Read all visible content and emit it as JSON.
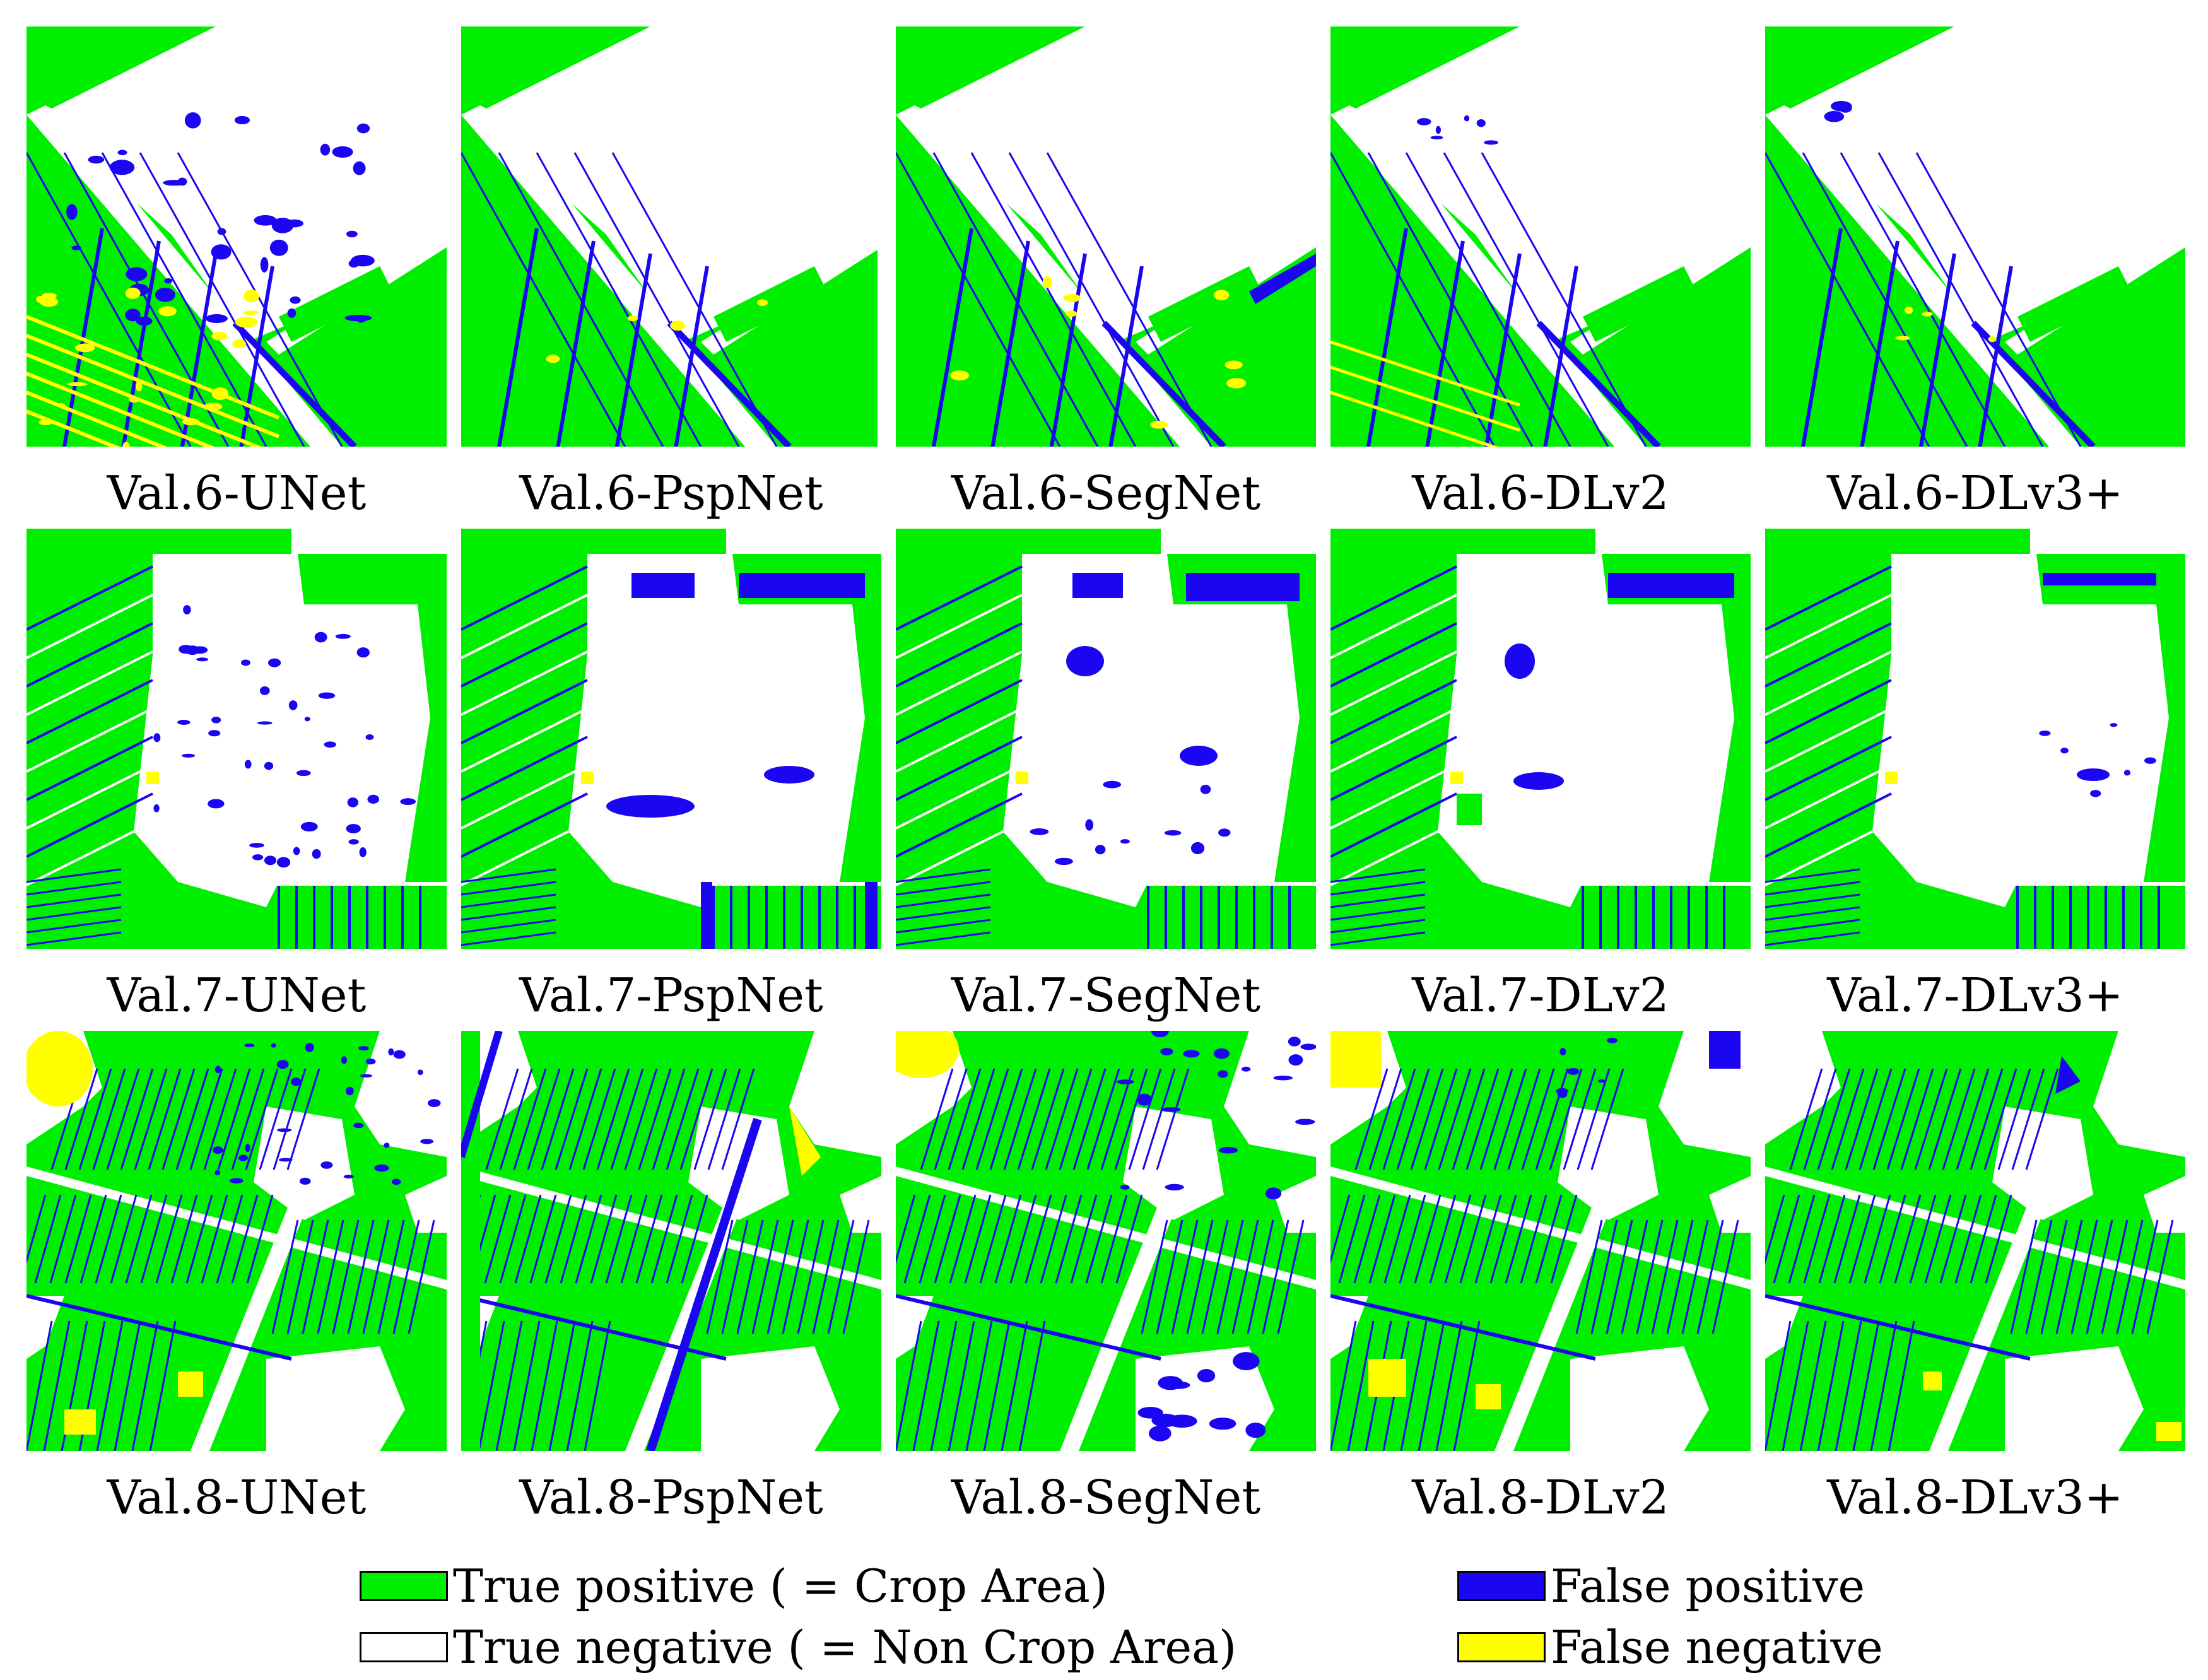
{
  "colors": {
    "true_positive": "#00ee00",
    "true_negative": "#ffffff",
    "false_positive": "#1a06f0",
    "false_negative": "#ffff00"
  },
  "panels": [
    {
      "caption": "Val.6-UNet"
    },
    {
      "caption": "Val.6-PspNet"
    },
    {
      "caption": "Val.6-SegNet"
    },
    {
      "caption": "Val.6-DLv2"
    },
    {
      "caption": "Val.6-DLv3+"
    },
    {
      "caption": "Val.7-UNet"
    },
    {
      "caption": "Val.7-PspNet"
    },
    {
      "caption": "Val.7-SegNet"
    },
    {
      "caption": "Val.7-DLv2"
    },
    {
      "caption": "Val.7-DLv3+"
    },
    {
      "caption": "Val.8-UNet"
    },
    {
      "caption": "Val.8-PspNet"
    },
    {
      "caption": "Val.8-SegNet"
    },
    {
      "caption": "Val.8-DLv2"
    },
    {
      "caption": "Val.8-DLv3+"
    }
  ],
  "legend": {
    "true_positive": "True positive ( = Crop Area)",
    "true_negative": "True negative ( = Non Crop Area)",
    "false_positive": "False positive",
    "false_negative": "False negative"
  }
}
